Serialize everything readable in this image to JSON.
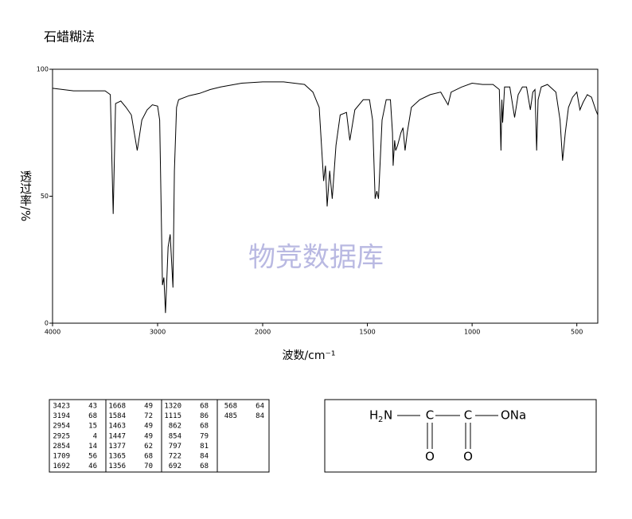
{
  "chart_data": {
    "type": "line",
    "title": "石蜡糊法",
    "ylabel": "透过率/%",
    "xlabel": "波数/cm⁻¹",
    "watermark": "物竞数据库",
    "color": "#000000",
    "xlim": [
      4000,
      400
    ],
    "x_scale_change": 2000,
    "xticks": [
      4000,
      3000,
      2000,
      1500,
      1000,
      500
    ],
    "ylim": [
      0,
      100
    ],
    "yticks": [
      0,
      50,
      100
    ],
    "x": [
      4000,
      3800,
      3500,
      3450,
      3423,
      3400,
      3350,
      3300,
      3250,
      3194,
      3150,
      3100,
      3050,
      3000,
      2980,
      2954,
      2940,
      2925,
      2900,
      2880,
      2854,
      2840,
      2820,
      2800,
      2700,
      2600,
      2500,
      2400,
      2200,
      2000,
      1900,
      1800,
      1760,
      1730,
      1709,
      1700,
      1692,
      1680,
      1668,
      1650,
      1630,
      1600,
      1584,
      1560,
      1520,
      1490,
      1475,
      1463,
      1455,
      1447,
      1430,
      1410,
      1390,
      1380,
      1377,
      1370,
      1365,
      1356,
      1340,
      1330,
      1320,
      1310,
      1290,
      1250,
      1200,
      1150,
      1115,
      1100,
      1050,
      1000,
      950,
      900,
      870,
      862,
      858,
      854,
      845,
      820,
      797,
      780,
      760,
      740,
      722,
      710,
      700,
      692,
      685,
      670,
      640,
      600,
      580,
      568,
      555,
      540,
      520,
      500,
      485,
      470,
      450,
      430,
      410,
      400
    ],
    "values": [
      92.5,
      91.5,
      91.5,
      90,
      43,
      86.5,
      87.5,
      85,
      82,
      68,
      80,
      84,
      86,
      85.5,
      80,
      15,
      18,
      4,
      30,
      35,
      14,
      60,
      85,
      88,
      89.6,
      90.5,
      92,
      93,
      94.5,
      95,
      95,
      94,
      91,
      85,
      56,
      62,
      46,
      60,
      49,
      70,
      82,
      83,
      72,
      84,
      88,
      88,
      80,
      49,
      52,
      49,
      80,
      88,
      88,
      75,
      62,
      72,
      68,
      70,
      75,
      77,
      68,
      75,
      85,
      88,
      90,
      91,
      86,
      91,
      93,
      94.5,
      94,
      94,
      92,
      68,
      88,
      79,
      93,
      93,
      81,
      90,
      93,
      93,
      84,
      91,
      92,
      68,
      88,
      93,
      94,
      91,
      80,
      64,
      75,
      85,
      89,
      91,
      84,
      87,
      90,
      89,
      84,
      82
    ]
  },
  "peak_table": [
    [
      [
        3423,
        43
      ],
      [
        3194,
        68
      ],
      [
        2954,
        15
      ],
      [
        2925,
        4
      ],
      [
        2854,
        14
      ],
      [
        1709,
        56
      ],
      [
        1692,
        46
      ]
    ],
    [
      [
        1668,
        49
      ],
      [
        1584,
        72
      ],
      [
        1463,
        49
      ],
      [
        1447,
        49
      ],
      [
        1377,
        62
      ],
      [
        1365,
        68
      ],
      [
        1356,
        70
      ]
    ],
    [
      [
        1320,
        68
      ],
      [
        1115,
        86
      ],
      [
        862,
        68
      ],
      [
        854,
        79
      ],
      [
        797,
        81
      ],
      [
        722,
        84
      ],
      [
        692,
        68
      ]
    ],
    [
      [
        568,
        64
      ],
      [
        485,
        84
      ]
    ]
  ],
  "structure": {
    "labels": [
      "H",
      "2",
      "N",
      "C",
      "C",
      "ONa",
      "O",
      "O"
    ]
  }
}
